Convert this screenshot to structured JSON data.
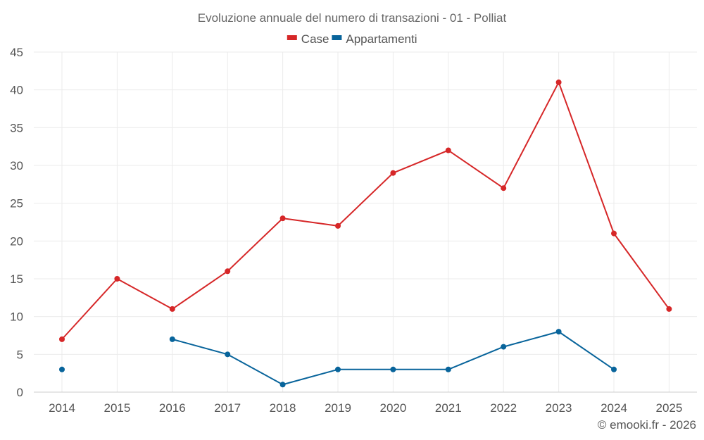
{
  "chart_data": {
    "type": "line",
    "title": "Evoluzione annuale del numero di transazioni - 01 - Polliat",
    "xlabel": "",
    "ylabel": "",
    "categories": [
      "2014",
      "2015",
      "2016",
      "2017",
      "2018",
      "2019",
      "2020",
      "2021",
      "2022",
      "2023",
      "2024",
      "2025"
    ],
    "ylim": [
      0,
      45
    ],
    "yticks": [
      0,
      5,
      10,
      15,
      20,
      25,
      30,
      35,
      40,
      45
    ],
    "grid": true,
    "legend_position": "top-center",
    "series": [
      {
        "name": "Case",
        "color": "#d62728",
        "values": [
          7,
          15,
          11,
          16,
          23,
          22,
          29,
          32,
          27,
          41,
          21,
          11
        ]
      },
      {
        "name": "Appartamenti",
        "color": "#08649b",
        "values": [
          3,
          null,
          7,
          5,
          1,
          3,
          3,
          3,
          6,
          8,
          3,
          null
        ]
      }
    ]
  },
  "credit": "© emooki.fr - 2026"
}
